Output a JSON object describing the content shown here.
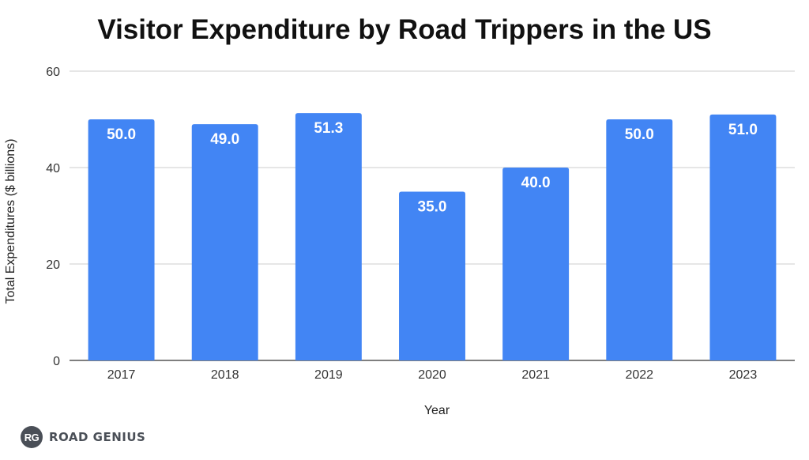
{
  "chart_data": {
    "type": "bar",
    "title": "Visitor Expenditure by Road Trippers in the US",
    "xlabel": "Year",
    "ylabel": "Total Expenditures ($ billions)",
    "categories": [
      "2017",
      "2018",
      "2019",
      "2020",
      "2021",
      "2022",
      "2023"
    ],
    "values": [
      50.0,
      49.0,
      51.3,
      35.0,
      40.0,
      50.0,
      51.0
    ],
    "data_labels": [
      "50.0",
      "49.0",
      "51.3",
      "35.0",
      "40.0",
      "50.0",
      "51.0"
    ],
    "ylim": [
      0,
      60
    ],
    "yticks": [
      "0",
      "20",
      "40",
      "60"
    ],
    "grid": true,
    "legend": "none",
    "bar_color": "#4285f4"
  },
  "watermark": {
    "badge": "RG",
    "text": "ROAD GENIUS"
  }
}
